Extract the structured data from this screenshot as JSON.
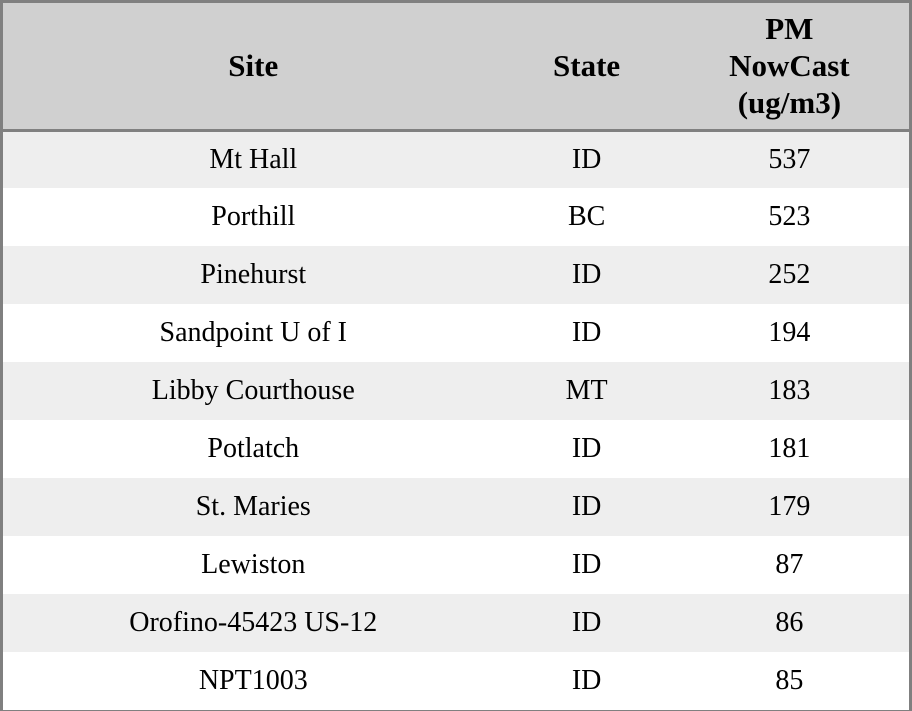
{
  "chart_data": {
    "type": "table",
    "columns": [
      "Site",
      "State",
      "PM NowCast (ug/m3)"
    ],
    "rows": [
      {
        "site": "Mt Hall",
        "state": "ID",
        "pm_nowcast": 537
      },
      {
        "site": "Porthill",
        "state": "BC",
        "pm_nowcast": 523
      },
      {
        "site": "Pinehurst",
        "state": "ID",
        "pm_nowcast": 252
      },
      {
        "site": "Sandpoint U of I",
        "state": "ID",
        "pm_nowcast": 194
      },
      {
        "site": "Libby Courthouse",
        "state": "MT",
        "pm_nowcast": 183
      },
      {
        "site": "Potlatch",
        "state": "ID",
        "pm_nowcast": 181
      },
      {
        "site": "St. Maries",
        "state": "ID",
        "pm_nowcast": 179
      },
      {
        "site": "Lewiston",
        "state": "ID",
        "pm_nowcast": 87
      },
      {
        "site": "Orofino-45423 US-12",
        "state": "ID",
        "pm_nowcast": 86
      },
      {
        "site": "NPT1003",
        "state": "ID",
        "pm_nowcast": 85
      }
    ]
  },
  "colors": {
    "header_bg": "#d0d0d0",
    "row_alt_bg": "#eeeeee",
    "row_bg": "#ffffff",
    "border": "#808080",
    "text": "#000000"
  }
}
